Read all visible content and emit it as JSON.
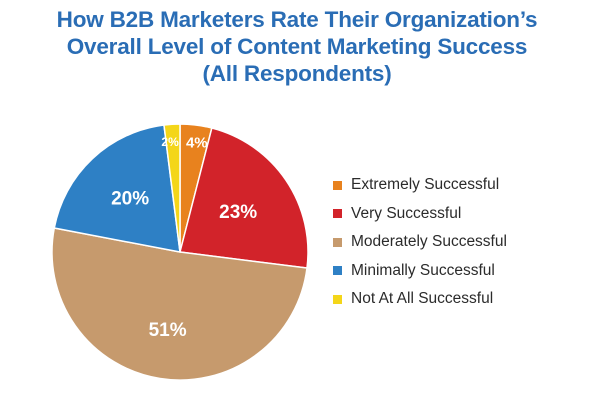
{
  "chart_data": {
    "type": "pie",
    "title_lines": [
      "How B2B Marketers Rate Their Organization’s",
      "Overall Level of Content Marketing Success",
      "(All Respondents)"
    ],
    "slices": [
      {
        "name": "Extremely Successful",
        "value": 4,
        "label": "4%",
        "color": "#e8821e"
      },
      {
        "name": "Very Successful",
        "value": 23,
        "label": "23%",
        "color": "#d2232a"
      },
      {
        "name": "Moderately Successful",
        "value": 51,
        "label": "51%",
        "color": "#c69a6d"
      },
      {
        "name": "Minimally Successful",
        "value": 20,
        "label": "20%",
        "color": "#2e80c5"
      },
      {
        "name": "Not At All Successful",
        "value": 2,
        "label": "2%",
        "color": "#f4d619"
      }
    ],
    "start_angle_deg": 0,
    "direction": "clockwise",
    "legend_position": "right",
    "grid": false
  }
}
